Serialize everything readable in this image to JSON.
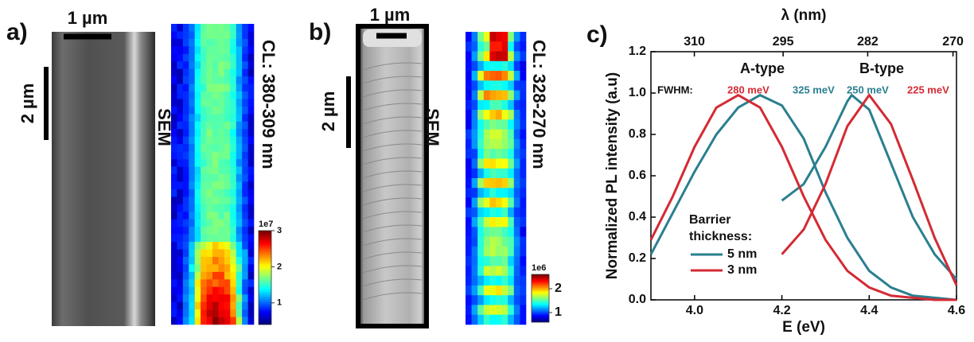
{
  "panels": [
    {
      "label": "a)",
      "scale_bars": [
        "1 µm",
        "2 µm"
      ],
      "sem_label": "SEM",
      "cl_label": "CL: 380-309 nm",
      "colorbar": {
        "exponent": "1e7",
        "lim": [
          0.4,
          3
        ],
        "ticks": [
          1,
          2,
          3
        ]
      }
    },
    {
      "label": "b)",
      "scale_bars": [
        "1 µm",
        "2 µm"
      ],
      "sem_label": "SEM",
      "cl_label": "CL: 328-270 nm",
      "colorbar": {
        "exponent": "1e6",
        "lim": [
          0.6,
          2.6
        ],
        "ticks": [
          1,
          2
        ]
      }
    }
  ],
  "chart_data": {
    "type": "line",
    "label": "c)",
    "xlabel": "E (eV)",
    "ylabel": "Normalized PL intensity (a.u)",
    "x2label": "λ (nm)",
    "xlim": [
      3.9,
      4.6
    ],
    "xticks": [
      {
        "value": 4,
        "label": "4.0"
      },
      4.2,
      4.4,
      {
        "value": 4.6,
        "label": "4.6"
      }
    ],
    "ylim": [
      0,
      1.2
    ],
    "yticks": [
      {
        "value": 0,
        "label": "0.0"
      },
      0.2,
      0.4,
      0.6,
      0.8,
      {
        "value": 1,
        "label": "1.0"
      },
      1.2
    ],
    "x2ticks": [
      310,
      295,
      282,
      270
    ],
    "legend_title": [
      "Barrier",
      "thickness:"
    ],
    "series": [
      {
        "name": "5 nm",
        "color": "#2a7f8f",
        "curves": [
          {
            "x": [
              3.9,
              3.95,
              4.0,
              4.05,
              4.1,
              4.15,
              4.2,
              4.25,
              4.3,
              4.35,
              4.4,
              4.45,
              4.5,
              4.55,
              4.6
            ],
            "values": [
              0.22,
              0.42,
              0.62,
              0.8,
              0.93,
              0.99,
              0.94,
              0.78,
              0.52,
              0.3,
              0.14,
              0.06,
              0.02,
              0.01,
              0.0
            ]
          },
          {
            "x": [
              4.2,
              4.25,
              4.3,
              4.35,
              4.36,
              4.4,
              4.45,
              4.5,
              4.55,
              4.6
            ],
            "values": [
              0.48,
              0.56,
              0.74,
              0.96,
              0.99,
              0.92,
              0.66,
              0.4,
              0.22,
              0.1
            ]
          }
        ]
      },
      {
        "name": "3 nm",
        "color": "#d42a33",
        "curves": [
          {
            "x": [
              3.9,
              3.95,
              4.0,
              4.05,
              4.1,
              4.15,
              4.2,
              4.25,
              4.3,
              4.35,
              4.4,
              4.45,
              4.5,
              4.55,
              4.6
            ],
            "values": [
              0.29,
              0.5,
              0.74,
              0.93,
              0.99,
              0.93,
              0.74,
              0.5,
              0.29,
              0.14,
              0.06,
              0.02,
              0.01,
              0.0,
              0.0
            ]
          },
          {
            "x": [
              4.2,
              4.25,
              4.3,
              4.35,
              4.4,
              4.45,
              4.5,
              4.55,
              4.6
            ],
            "values": [
              0.22,
              0.34,
              0.56,
              0.84,
              0.99,
              0.85,
              0.58,
              0.3,
              0.07
            ]
          }
        ]
      }
    ],
    "annotations": [
      {
        "text": "A-type",
        "color": "#111111"
      },
      {
        "text": "B-type",
        "color": "#111111"
      },
      {
        "text": "FWHM:",
        "color": "#111111"
      },
      {
        "text": "280 meV",
        "color": "#d42a33"
      },
      {
        "text": "325 meV",
        "color": "#2a7f8f"
      },
      {
        "text": "250 meV",
        "color": "#2a7f8f"
      },
      {
        "text": "225 meV",
        "color": "#d42a33"
      }
    ]
  }
}
